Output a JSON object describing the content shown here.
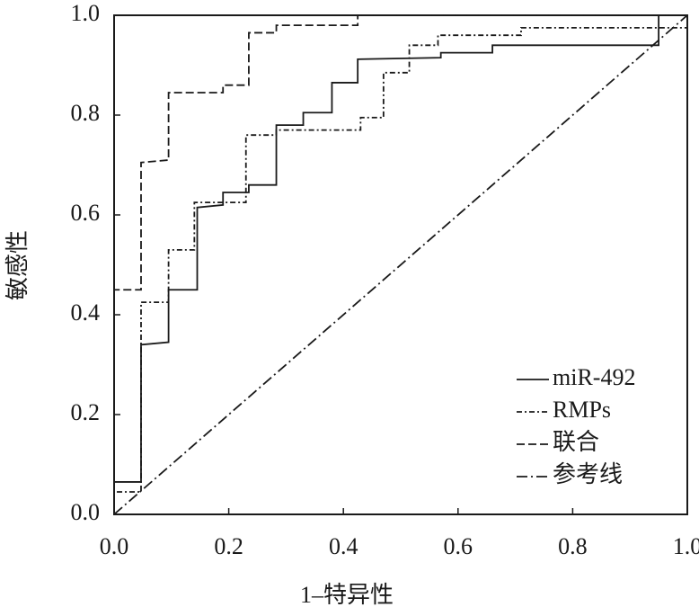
{
  "chart_data": {
    "type": "line",
    "xlabel": "1–特异性",
    "ylabel": "敏感性",
    "xlim": [
      0,
      1
    ],
    "ylim": [
      0,
      1
    ],
    "xticks": [
      {
        "value": 0,
        "label": "0.0"
      },
      0.2,
      0.4,
      0.6,
      0.8,
      {
        "value": 1,
        "label": "1.0"
      }
    ],
    "yticks": [
      {
        "value": 0,
        "label": "0.0"
      },
      0.2,
      0.4,
      0.6,
      0.8,
      {
        "value": 1,
        "label": "1.0"
      }
    ],
    "legend": "lower-right",
    "series": [
      {
        "name": "miR-492",
        "color": "#1a1a1a",
        "style": "solid",
        "x": [
          0,
          0,
          0.047,
          0.047,
          0.095,
          0.095,
          0.145,
          0.145,
          0.19,
          0.19,
          0.235,
          0.235,
          0.283,
          0.283,
          0.33,
          0.33,
          0.38,
          0.38,
          0.425,
          0.425,
          0.57,
          0.57,
          0.66,
          0.66,
          0.95,
          0.95,
          1
        ],
        "values": [
          0,
          0.065,
          0.065,
          0.34,
          0.345,
          0.45,
          0.45,
          0.615,
          0.62,
          0.645,
          0.645,
          0.66,
          0.66,
          0.78,
          0.78,
          0.805,
          0.805,
          0.865,
          0.865,
          0.912,
          0.915,
          0.925,
          0.925,
          0.94,
          0.94,
          1,
          1
        ]
      },
      {
        "name": "RMPs",
        "color": "#1a1a1a",
        "style": "dash-dot",
        "x": [
          0,
          0,
          0.047,
          0.047,
          0.095,
          0.095,
          0.14,
          0.14,
          0.23,
          0.23,
          0.283,
          0.283,
          0.43,
          0.43,
          0.47,
          0.47,
          0.515,
          0.515,
          0.565,
          0.565,
          0.71,
          0.71,
          0.95,
          1
        ],
        "values": [
          0,
          0.045,
          0.045,
          0.425,
          0.425,
          0.53,
          0.53,
          0.625,
          0.625,
          0.76,
          0.76,
          0.77,
          0.77,
          0.795,
          0.795,
          0.885,
          0.885,
          0.94,
          0.94,
          0.96,
          0.96,
          0.975,
          0.975,
          0.975
        ]
      },
      {
        "name": "联合",
        "color": "#1a1a1a",
        "style": "dashed",
        "x": [
          0,
          0,
          0.047,
          0.047,
          0.095,
          0.095,
          0.19,
          0.19,
          0.235,
          0.235,
          0.283,
          0.283,
          0.425,
          0.425,
          1
        ],
        "values": [
          0,
          0.45,
          0.45,
          0.705,
          0.71,
          0.845,
          0.845,
          0.86,
          0.86,
          0.965,
          0.965,
          0.98,
          0.98,
          1,
          1
        ]
      },
      {
        "name": "参考线",
        "color": "#1a1a1a",
        "style": "long-dash-dot",
        "x": [
          0,
          1
        ],
        "values": [
          0,
          1
        ]
      }
    ]
  }
}
